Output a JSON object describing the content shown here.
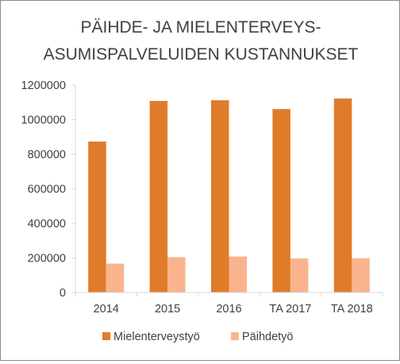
{
  "chart_data": {
    "type": "bar",
    "title_lines": [
      "PÄIHDE- JA MIELENTERVEYS-",
      "ASUMISPALVELUIDEN  KUSTANNUKSET"
    ],
    "categories": [
      "2014",
      "2015",
      "2016",
      "TA 2017",
      "TA 2018"
    ],
    "series": [
      {
        "name": "Mielenterveystyö",
        "color": "#e07b2a",
        "values": [
          873000,
          1108000,
          1112000,
          1061000,
          1122000
        ]
      },
      {
        "name": "Päihdetyö",
        "color": "#f9b48d",
        "values": [
          167000,
          204000,
          208000,
          197000,
          198000
        ]
      }
    ],
    "ylim": [
      0,
      1200000
    ],
    "yticks": [
      "0",
      "200000",
      "400000",
      "600000",
      "800000",
      "1000000",
      "1200000"
    ],
    "grid": false,
    "legend_position": "bottom"
  }
}
